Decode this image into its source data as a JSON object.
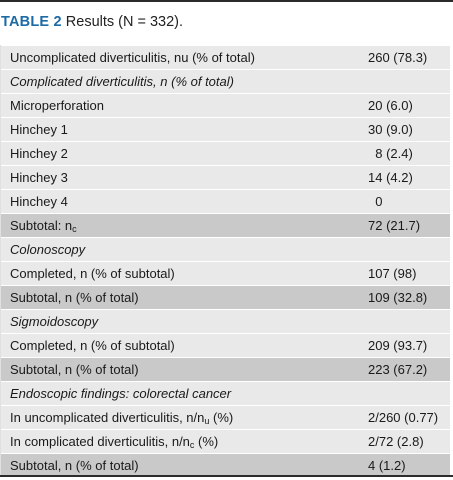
{
  "caption": {
    "label": "TABLE 2",
    "text": " Results (N = 332)."
  },
  "rows": [
    {
      "label": "Uncomplicated diverticulitis, nu (% of total)",
      "value": "260 (78.3)",
      "style": "plain"
    },
    {
      "label": "Complicated diverticulitis, n (% of total)",
      "value": "",
      "style": "italic"
    },
    {
      "label": "Microperforation",
      "value": "20 (6.0)",
      "style": "plain"
    },
    {
      "label": "Hinchey 1",
      "value": "30 (9.0)",
      "style": "plain"
    },
    {
      "label": "Hinchey 2",
      "value": "  8 (2.4)",
      "style": "plain"
    },
    {
      "label": "Hinchey 3",
      "value": "14 (4.2)",
      "style": "plain"
    },
    {
      "label": "Hinchey 4",
      "value": "  0",
      "style": "plain"
    },
    {
      "label": "Subtotal: n",
      "label_sub": "c",
      "value": "72 (21.7)",
      "style": "shade"
    },
    {
      "label": "Colonoscopy",
      "value": "",
      "style": "italic"
    },
    {
      "label": "Completed, n (% of subtotal)",
      "value": "107 (98)",
      "style": "plain"
    },
    {
      "label": "Subtotal, n (% of total)",
      "value": "109 (32.8)",
      "style": "shade"
    },
    {
      "label": "Sigmoidoscopy",
      "value": "",
      "style": "italic"
    },
    {
      "label": "Completed, n (% of subtotal)",
      "value": "209 (93.7)",
      "style": "plain"
    },
    {
      "label": "Subtotal, n (% of total)",
      "value": "223 (67.2)",
      "style": "shade"
    },
    {
      "label": "Endoscopic findings: colorectal cancer",
      "value": "",
      "style": "italic"
    },
    {
      "label": "In uncomplicated diverticulitis, n/n",
      "label_sub": "u",
      "label_after": " (%)",
      "value": "2/260 (0.77)",
      "style": "plain"
    },
    {
      "label": "In complicated diverticulitis, n/n",
      "label_sub": "c",
      "label_after": " (%)",
      "value": "2/72 (2.8)",
      "style": "plain"
    },
    {
      "label": "Subtotal, n (% of total)",
      "value": "4 (1.2)",
      "style": "shade"
    }
  ]
}
